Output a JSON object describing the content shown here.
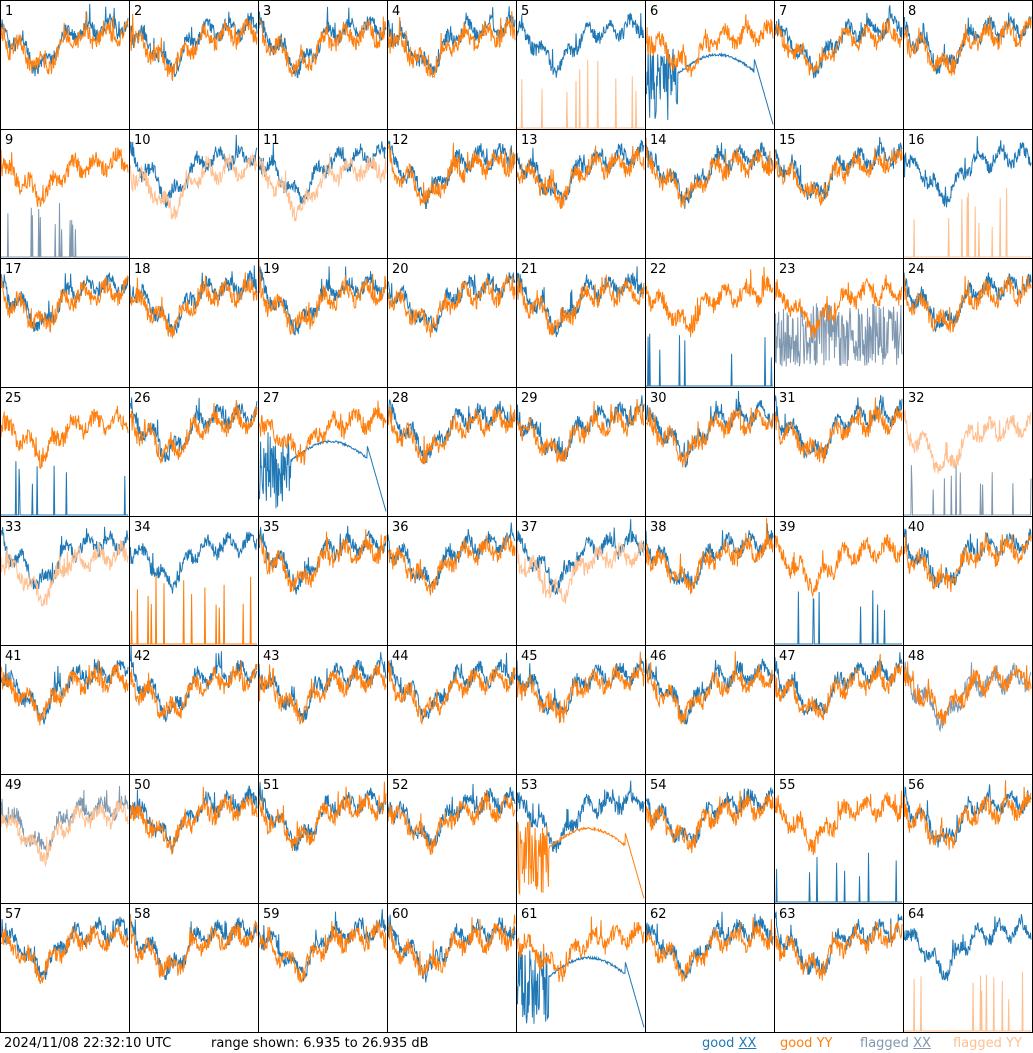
{
  "chart_data": {
    "type": "line",
    "layout": "8x8 small-multiples grid",
    "panels": [
      "1",
      "2",
      "3",
      "4",
      "5",
      "6",
      "7",
      "8",
      "9",
      "10",
      "11",
      "12",
      "13",
      "14",
      "15",
      "16",
      "17",
      "18",
      "19",
      "20",
      "21",
      "22",
      "23",
      "24",
      "25",
      "26",
      "27",
      "28",
      "29",
      "30",
      "31",
      "32",
      "33",
      "34",
      "35",
      "36",
      "37",
      "38",
      "39",
      "40",
      "41",
      "42",
      "43",
      "44",
      "45",
      "46",
      "47",
      "48",
      "49",
      "50",
      "51",
      "52",
      "53",
      "54",
      "55",
      "56",
      "57",
      "58",
      "59",
      "60",
      "61",
      "62",
      "63",
      "64"
    ],
    "ylim": [
      6.935,
      26.935
    ],
    "yunit": "dB",
    "legend_position": "bottom-right",
    "series_styles": {
      "good_xx": "#1f77b4",
      "good_yy": "#ff7f0e",
      "flagged_xx": "#7f98b0",
      "flagged_yy": "#ffbf8f"
    },
    "panel_states": {
      "5": [
        "good_xx",
        "flagged_yy_spikes"
      ],
      "6": [
        "drop_xx",
        "good_yy"
      ],
      "9": [
        "flagged_xx_spikes",
        "good_yy"
      ],
      "10": [
        "good_xx",
        "flagged_yy"
      ],
      "11": [
        "good_xx",
        "flagged_yy"
      ],
      "16": [
        "good_xx",
        "flagged_yy_spikes"
      ],
      "22": [
        "good_xx_spikes",
        "good_yy"
      ],
      "23": [
        "flagged_xx_noisy",
        "good_yy"
      ],
      "25": [
        "good_xx_spikes",
        "good_yy"
      ],
      "27": [
        "drop_xx",
        "good_yy"
      ],
      "32": [
        "flagged_xx_spikes",
        "flagged_yy"
      ],
      "33": [
        "good_xx",
        "flagged_yy"
      ],
      "34": [
        "good_xx",
        "good_yy_spikes"
      ],
      "37": [
        "good_xx",
        "flagged_yy"
      ],
      "39": [
        "good_xx_spikes",
        "good_yy"
      ],
      "48": [
        "flagged_xx",
        "good_yy"
      ],
      "49": [
        "flagged_xx",
        "flagged_yy"
      ],
      "53": [
        "good_xx",
        "drop_yy"
      ],
      "55": [
        "good_xx_spikes",
        "good_yy"
      ],
      "61": [
        "drop_xx",
        "good_yy"
      ],
      "64": [
        "good_xx",
        "flagged_yy_spikes"
      ]
    }
  },
  "footer": {
    "timestamp": "2024/11/08 22:32:10 UTC",
    "range": "range shown: 6.935 to 26.935 dB",
    "legend": [
      {
        "word": "good",
        "pol": "XX",
        "color": "#1f77b4"
      },
      {
        "word": "good",
        "pol": "YY",
        "color": "#ff7f0e"
      },
      {
        "word": "flagged",
        "pol": "XX",
        "color": "#7f98b0"
      },
      {
        "word": "flagged",
        "pol": "YY",
        "color": "#ffbf8f"
      }
    ]
  }
}
